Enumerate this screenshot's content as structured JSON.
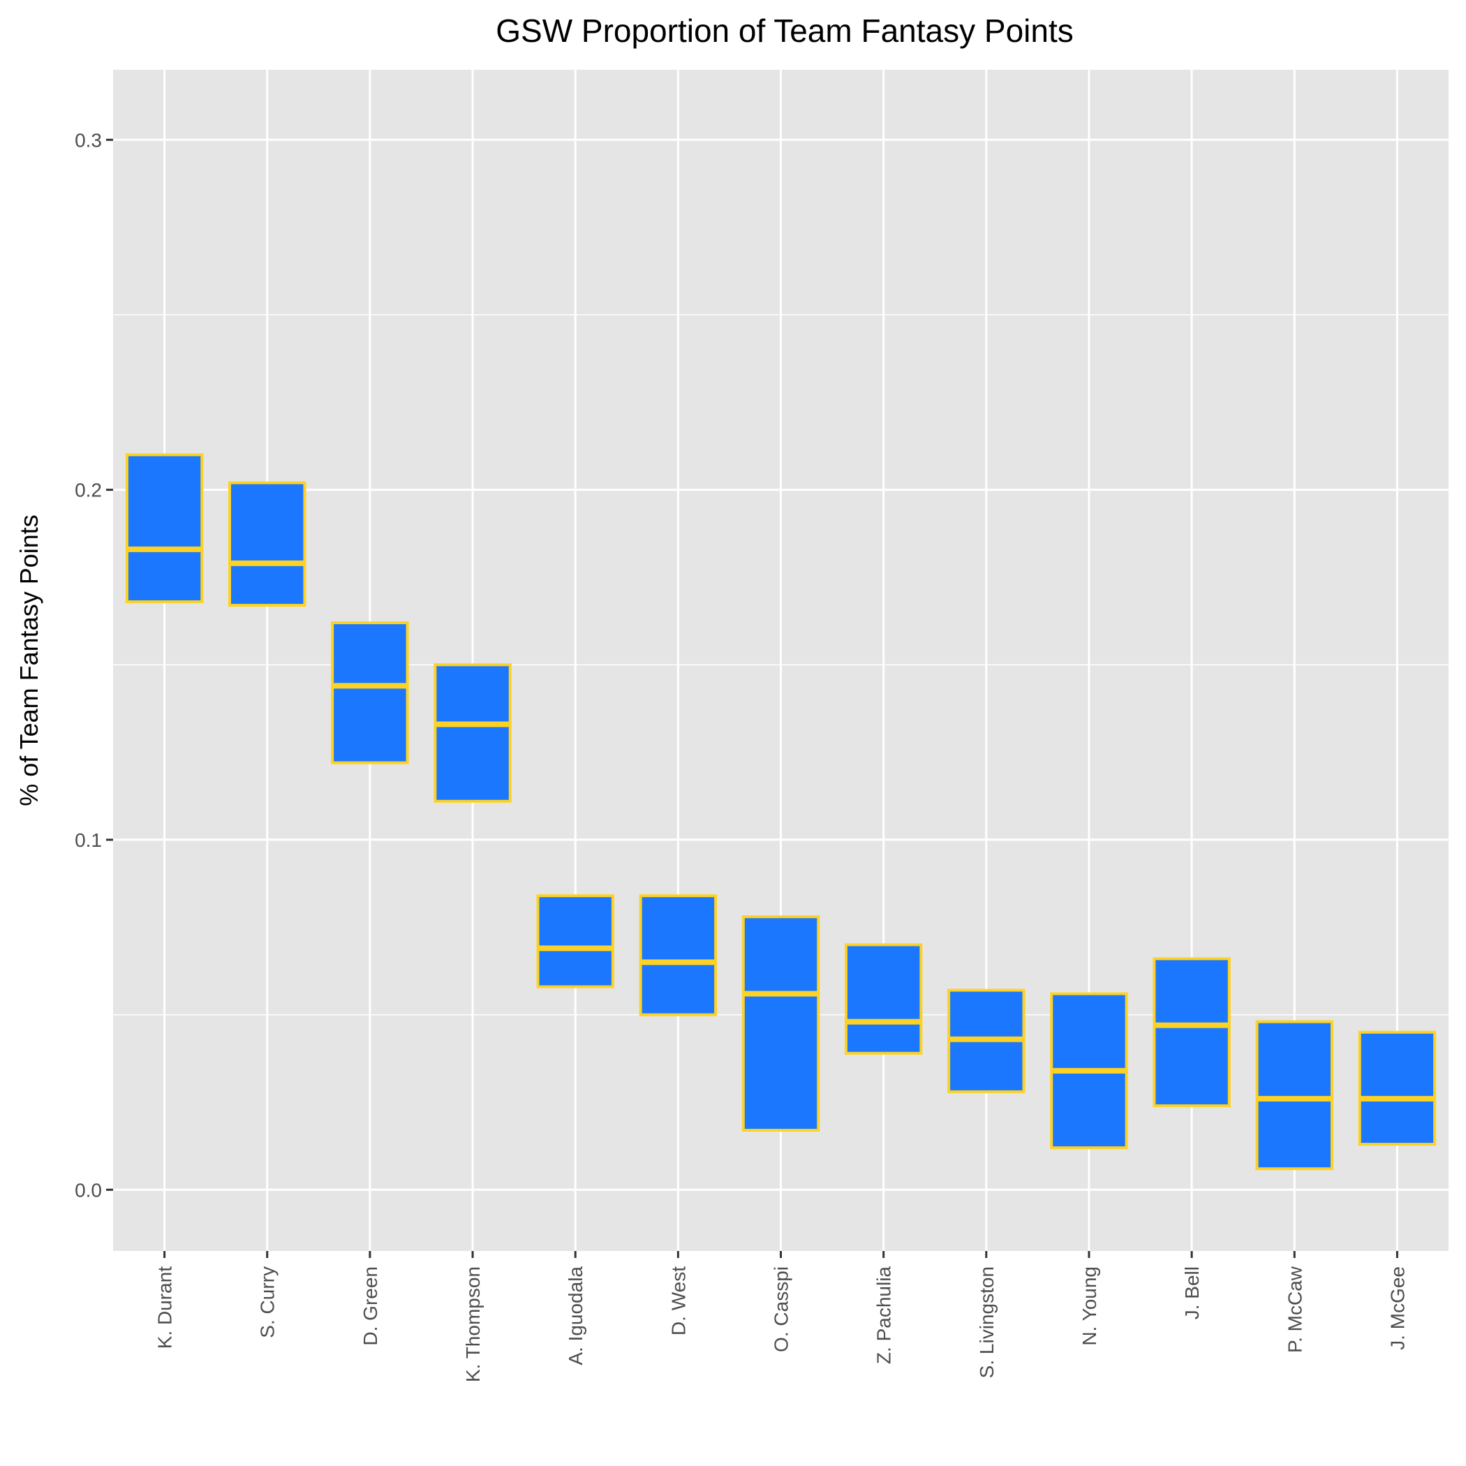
{
  "chart_data": {
    "type": "boxplot",
    "title": "GSW Proportion of Team Fantasy Points",
    "xlabel": "",
    "ylabel": "% of Team Fantasy Points",
    "ylim": [
      -0.0175,
      0.32
    ],
    "y_ticks": [
      "0.0",
      "0.1",
      "0.2",
      "0.3"
    ],
    "y_tick_values": [
      0.0,
      0.1,
      0.2,
      0.3
    ],
    "y_minor_grid": [
      0.05,
      0.15,
      0.25
    ],
    "grid": true,
    "legend": "none",
    "colors": {
      "panel_bg": "#e5e5e5",
      "grid": "#ffffff",
      "box_fill": "#1b77fd",
      "box_border": "#fdd223",
      "tick_text": "#4d4d4d",
      "title_text": "#000000"
    },
    "categories": [
      "K. Durant",
      "S. Curry",
      "D. Green",
      "K. Thompson",
      "A. Iguodala",
      "D. West",
      "O. Casspi",
      "Z. Pachulia",
      "S. Livingston",
      "N. Young",
      "J. Bell",
      "P. McCaw",
      "J. McGee"
    ],
    "series": [
      {
        "q1": [
          0.168,
          0.167,
          0.122,
          0.111,
          0.058,
          0.05,
          0.017,
          0.039,
          0.028,
          0.012,
          0.024,
          0.006,
          0.013
        ],
        "median": [
          0.183,
          0.179,
          0.144,
          0.133,
          0.069,
          0.065,
          0.056,
          0.048,
          0.043,
          0.034,
          0.047,
          0.026,
          0.026
        ],
        "q3": [
          0.21,
          0.202,
          0.162,
          0.15,
          0.084,
          0.084,
          0.078,
          0.07,
          0.057,
          0.056,
          0.066,
          0.048,
          0.045
        ]
      }
    ]
  }
}
